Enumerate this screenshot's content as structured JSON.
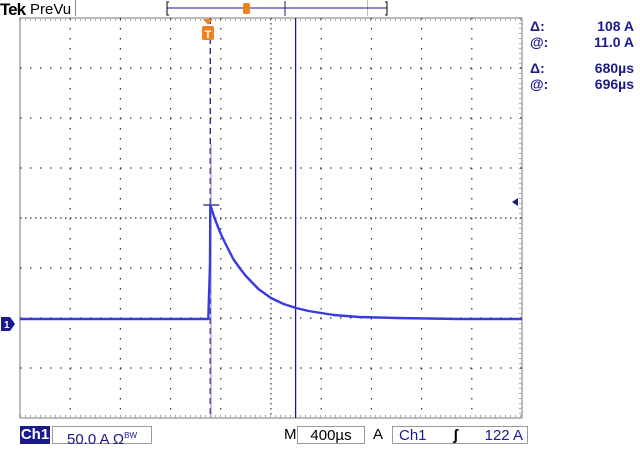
{
  "header": {
    "brand": "Tek",
    "mode": "PreVu"
  },
  "cursor_readouts": {
    "amplitude_delta_label": "Δ:",
    "amplitude_delta": "108 A",
    "amplitude_at_label": "@:",
    "amplitude_at": "11.0 A",
    "time_delta_label": "Δ:",
    "time_delta": "680µs",
    "time_at_label": "@:",
    "time_at": "696µs"
  },
  "status_bar": {
    "channel": "Ch1",
    "scale": "50.0 A",
    "scale_suffix": "Ω",
    "bandwidth": "BW",
    "timebase_label": "M",
    "timebase": "400µs",
    "trigger_label": "A",
    "trigger_source": "Ch1",
    "trigger_slope": "ʃ",
    "trigger_level": "122 A"
  },
  "markers": {
    "trigger": "T",
    "channel_ground": "1"
  },
  "colors": {
    "trace": "#3a3ade",
    "cursor": "#1a1a80",
    "trigger_marker": "#f08020",
    "text": "#1a1a8c"
  },
  "chart_data": {
    "type": "line",
    "title": "",
    "xlabel": "",
    "ylabel": "",
    "x_units": "µs",
    "y_units": "A",
    "xlim": [
      -1500,
      2500
    ],
    "ylim": [
      -94,
      306
    ],
    "x_per_div": 400,
    "y_per_div": 50,
    "grid": true,
    "trigger_time": 0,
    "trigger_level": 122,
    "cursors": {
      "time": [
        16,
        696
      ],
      "amplitude": [
        119,
        11.0
      ]
    },
    "series": [
      {
        "x": [
          -1500,
          -1000,
          -500,
          -100,
          0,
          14,
          16,
          50,
          100,
          150,
          200,
          250,
          300,
          400,
          500,
          600,
          700,
          800,
          1000,
          1200,
          1500,
          2000,
          2500
        ],
        "y": [
          5,
          5,
          5,
          5,
          5,
          60,
          119,
          106,
          90,
          77,
          65,
          56,
          48,
          35,
          26,
          20,
          16,
          13,
          9,
          7,
          6,
          5,
          5
        ]
      }
    ]
  }
}
